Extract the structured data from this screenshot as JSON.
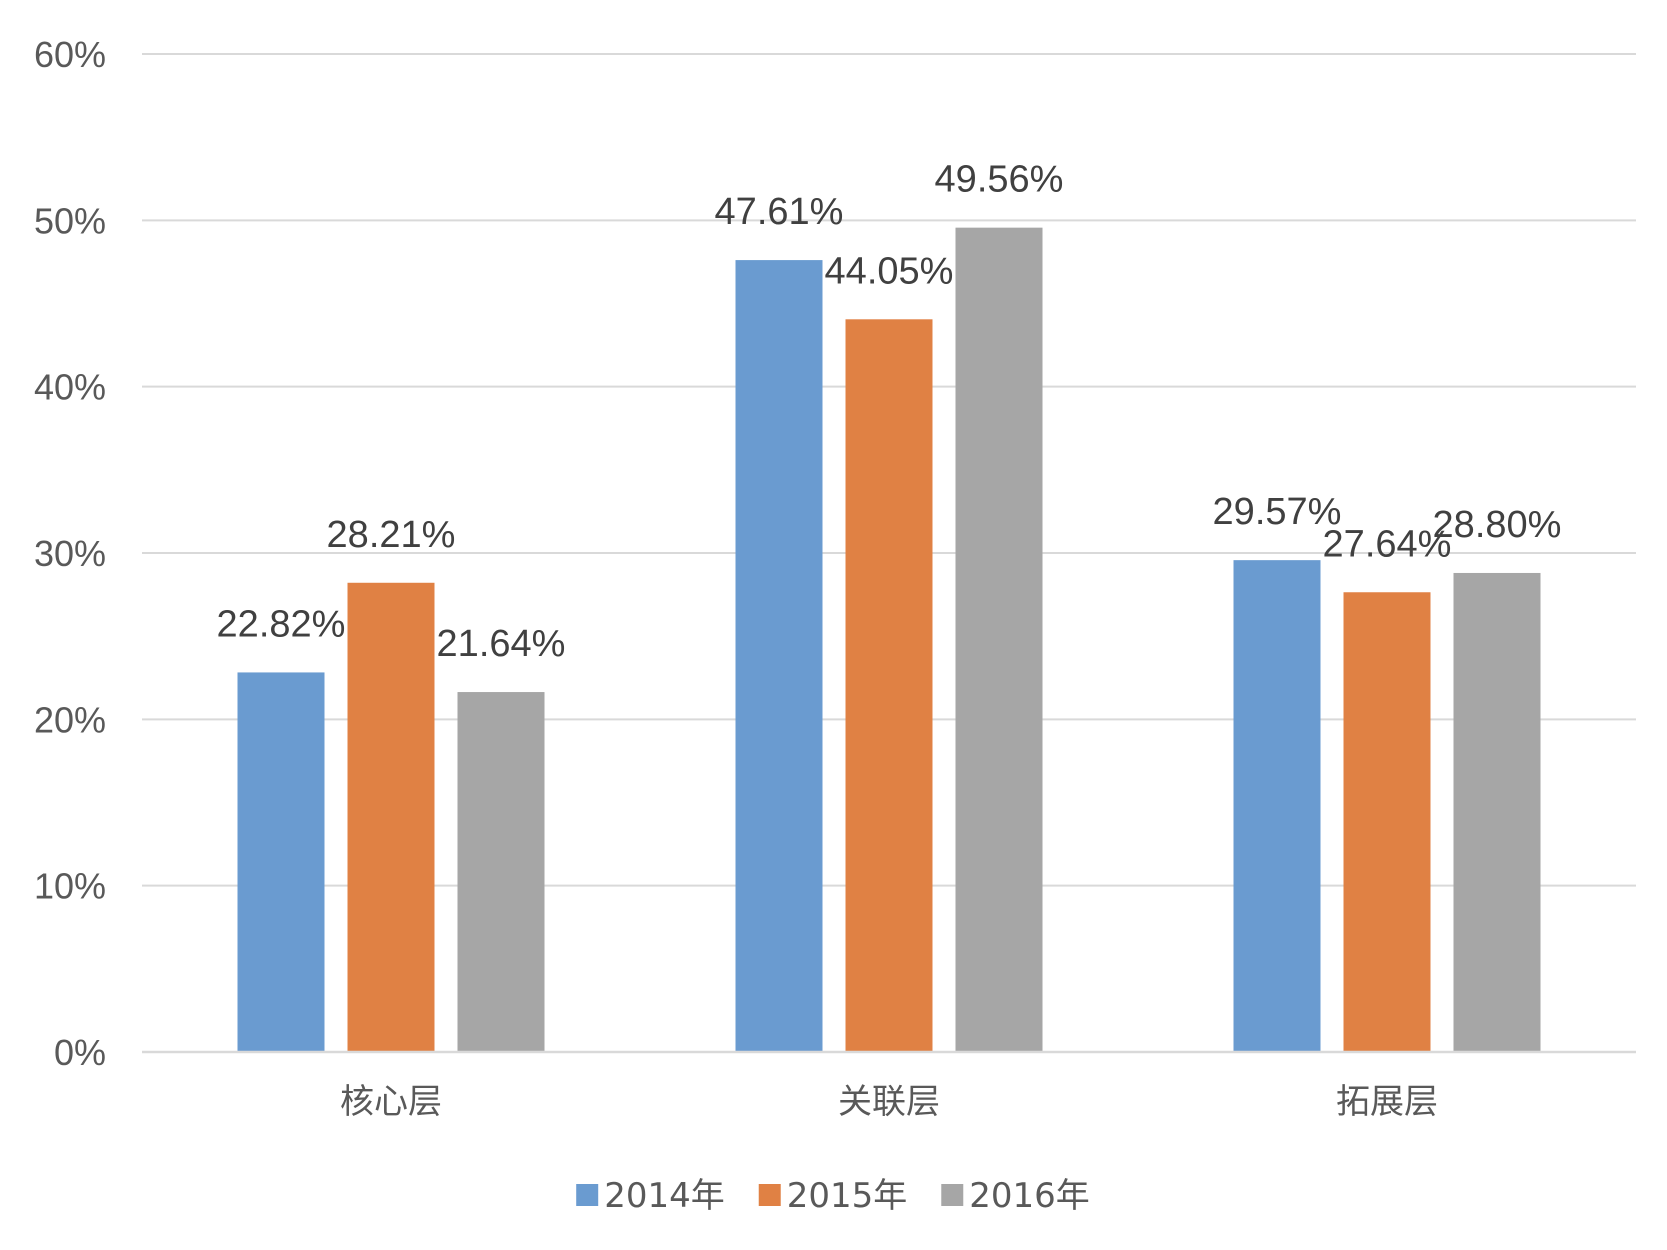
{
  "chart_data": {
    "type": "bar",
    "categories": [
      "核心层",
      "关联层",
      "拓展层"
    ],
    "series": [
      {
        "name": "2014年",
        "color": "#6a9bd0",
        "values": [
          22.82,
          47.61,
          29.57
        ],
        "labels": [
          "22.82%",
          "47.61%",
          "29.57%"
        ]
      },
      {
        "name": "2015年",
        "color": "#e08144",
        "values": [
          28.21,
          44.05,
          27.64
        ],
        "labels": [
          "28.21%",
          "44.05%",
          "27.64%"
        ]
      },
      {
        "name": "2016年",
        "color": "#a6a6a6",
        "values": [
          21.64,
          49.56,
          28.8
        ],
        "labels": [
          "21.64%",
          "49.56%",
          "28.80%"
        ]
      }
    ],
    "ylim": [
      0,
      60
    ],
    "yticks": [
      0,
      10,
      20,
      30,
      40,
      50,
      60
    ],
    "ytick_labels": [
      "0%",
      "10%",
      "20%",
      "30%",
      "40%",
      "50%",
      "60%"
    ],
    "grid": true,
    "legend_position": "bottom",
    "title": "",
    "xlabel": "",
    "ylabel": ""
  }
}
